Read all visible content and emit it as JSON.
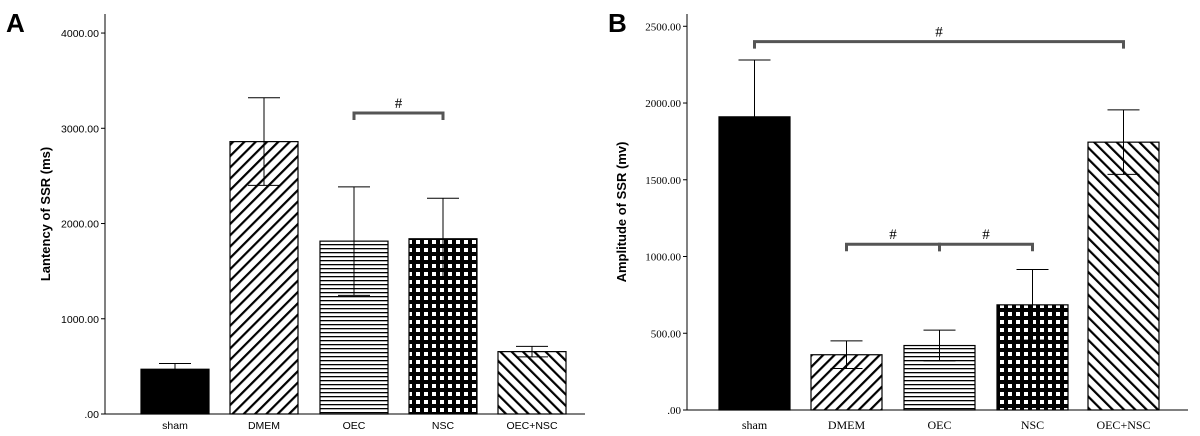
{
  "chart_data": [
    {
      "panel": "A",
      "type": "bar",
      "ylabel": "Lantency of SSR (ms)",
      "categories": [
        "sham",
        "DMEM",
        "OEC",
        "NSC",
        "OEC+NSC"
      ],
      "values": [
        470,
        2860,
        1815,
        1840,
        655
      ],
      "errors": [
        60,
        460,
        570,
        425,
        55
      ],
      "patterns": [
        "solid",
        "diag-back",
        "horizontal",
        "checker",
        "diag-fwd"
      ],
      "ylim": [
        0,
        4200
      ],
      "yticks": [
        0,
        1000,
        2000,
        3000,
        4000
      ],
      "ytick_labels": [
        ".00",
        "1000.00",
        "2000.00",
        "3000.00",
        "4000.00"
      ],
      "significance": [
        {
          "from": 2,
          "to": 3,
          "label": "#",
          "y": 3160
        }
      ]
    },
    {
      "panel": "B",
      "type": "bar",
      "ylabel": "Amplitude of SSR (mv)",
      "categories": [
        "sham",
        "DMEM",
        "OEC",
        "NSC",
        "OEC+NSC"
      ],
      "values": [
        1910,
        360,
        420,
        685,
        1745
      ],
      "errors": [
        370,
        90,
        100,
        230,
        210
      ],
      "patterns": [
        "solid",
        "diag-back",
        "horizontal",
        "checker",
        "diag-fwd"
      ],
      "ylim": [
        0,
        2580
      ],
      "yticks": [
        0,
        500,
        1000,
        1500,
        2000,
        2500
      ],
      "ytick_labels": [
        ".00",
        "500.00",
        "1000.00",
        "1500.00",
        "2000.00",
        "2500.00"
      ],
      "significance": [
        {
          "from": 0,
          "to": 4,
          "label": "#",
          "y": 2400
        },
        {
          "from": 1,
          "to": 2,
          "label": "#",
          "y": 1080
        },
        {
          "from": 2,
          "to": 3,
          "label": "#",
          "y": 1080
        }
      ]
    }
  ]
}
